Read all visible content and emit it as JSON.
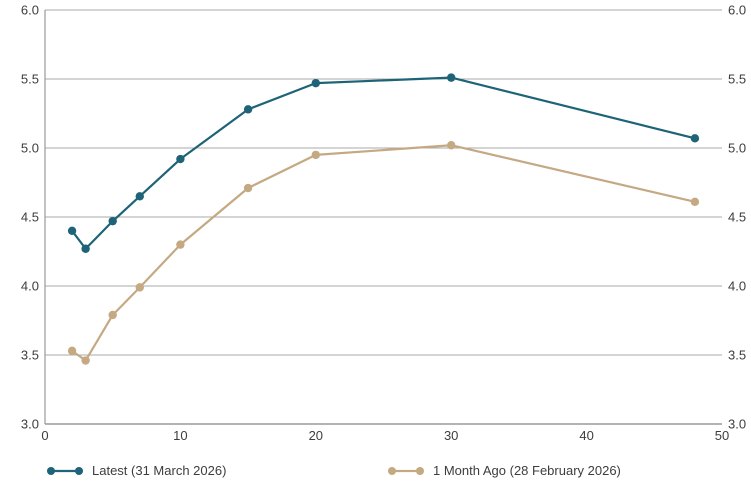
{
  "chart_data": {
    "type": "line",
    "title": "",
    "xlabel": "",
    "ylabel": "",
    "x": [
      2,
      3,
      5,
      7,
      10,
      15,
      20,
      30,
      48
    ],
    "series": [
      {
        "name": "Latest (31 March 2026)",
        "color": "#1e6377",
        "values": [
          4.4,
          4.27,
          4.47,
          4.65,
          4.92,
          5.28,
          5.47,
          5.51,
          5.07
        ]
      },
      {
        "name": "1 Month Ago (28 February 2026)",
        "color": "#c4a982",
        "values": [
          3.53,
          3.46,
          3.79,
          3.99,
          4.3,
          4.71,
          4.95,
          5.02,
          4.61
        ]
      }
    ],
    "xlim": [
      0,
      50
    ],
    "ylim": [
      3.0,
      6.0
    ],
    "x_tick_labels": [
      "0",
      "10",
      "20",
      "30",
      "40",
      "50"
    ],
    "x_tick_values": [
      0,
      10,
      20,
      30,
      40,
      50
    ],
    "y_tick_labels": [
      "3.0",
      "3.5",
      "4.0",
      "4.5",
      "5.0",
      "5.5",
      "6.0"
    ],
    "y_tick_values": [
      3.0,
      3.5,
      4.0,
      4.5,
      5.0,
      5.5,
      6.0
    ],
    "grid": "horizontal",
    "dual_y_axis": true,
    "legend_position": "bottom",
    "marker": "circle"
  },
  "colors": {
    "background": "#ffffff",
    "gridline": "#a9a9a9",
    "axis_spine": "#9a9a9a",
    "tick_text": "#3d3d3d",
    "series_latest": "#1e6377",
    "series_month_ago": "#c4a982"
  },
  "legend": {
    "items": [
      {
        "label": "Latest (31 March 2026)"
      },
      {
        "label": "1 Month Ago (28 February 2026)"
      }
    ]
  }
}
